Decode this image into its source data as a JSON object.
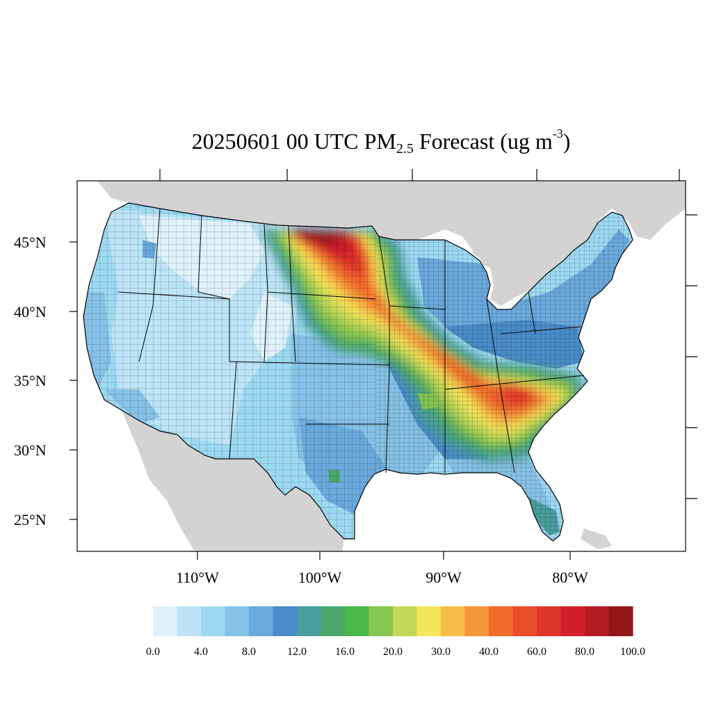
{
  "title": {
    "main": "20250601 00 UTC PM",
    "subscript": "2.5",
    "suffix": " Forecast (ug m",
    "superscript": "-3",
    "close": ")"
  },
  "axes": {
    "lat_labels": [
      "45°N",
      "40°N",
      "35°N",
      "30°N",
      "25°N"
    ],
    "lon_labels": [
      "110°W",
      "100°W",
      "90°W",
      "80°W"
    ]
  },
  "colorbar": {
    "colors": [
      "#dff2fb",
      "#bde4f6",
      "#9dd9f3",
      "#86c1e6",
      "#6aa9dc",
      "#4a8cc9",
      "#4a9e9e",
      "#4aa86c",
      "#4cb849",
      "#86c64f",
      "#c4d657",
      "#f5e65a",
      "#f6bd48",
      "#f5963b",
      "#f26b2b",
      "#ea4d29",
      "#de3429",
      "#d21f2a",
      "#b41c21",
      "#901618"
    ],
    "labels": [
      "0.0",
      "4.0",
      "8.0",
      "12.0",
      "16.0",
      "20.0",
      "30.0",
      "40.0",
      "60.0",
      "80.0",
      "100.0"
    ]
  },
  "map_colors": {
    "land_outside": "#d3d3d3",
    "water": "#ffffff",
    "county_lines": "#000000"
  }
}
